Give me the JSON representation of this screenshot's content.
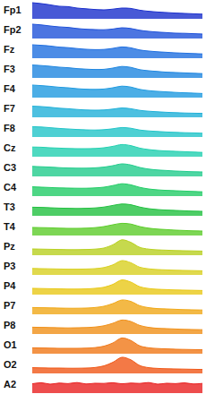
{
  "chart_data": [
    {
      "type": "area",
      "title": "Fp1",
      "color": "#1a2fcc",
      "ylim": [
        0,
        10
      ],
      "tick_labels": false,
      "grid": false,
      "categories": [
        null,
        null,
        null,
        null,
        null,
        null,
        null,
        null,
        null,
        null,
        null,
        null,
        null,
        null,
        null,
        null,
        null,
        null,
        null,
        null
      ],
      "values": [
        9,
        8.5,
        7.8,
        7,
        6.8,
        6,
        5.6,
        5.2,
        5,
        5.4,
        6,
        5.8,
        4.8,
        4.2,
        3.8,
        3.5,
        3.2,
        3,
        2.8,
        2.6
      ]
    },
    {
      "type": "area",
      "title": "Fp2",
      "color": "#1f52d9",
      "ylim": [
        0,
        10
      ],
      "tick_labels": false,
      "grid": false,
      "categories": [
        null,
        null,
        null,
        null,
        null,
        null,
        null,
        null,
        null,
        null,
        null,
        null,
        null,
        null,
        null,
        null,
        null,
        null,
        null,
        null
      ],
      "values": [
        8,
        7.6,
        7,
        6.5,
        6.2,
        5.6,
        5.2,
        5,
        4.9,
        5.3,
        6,
        5.6,
        4.6,
        4,
        3.6,
        3.3,
        3,
        2.9,
        2.7,
        2.5
      ]
    },
    {
      "type": "area",
      "title": "Fz",
      "color": "#1f6fe0",
      "ylim": [
        0,
        10
      ],
      "tick_labels": false,
      "grid": false,
      "categories": [
        null,
        null,
        null,
        null,
        null,
        null,
        null,
        null,
        null,
        null,
        null,
        null,
        null,
        null,
        null,
        null,
        null,
        null,
        null,
        null
      ],
      "values": [
        7.5,
        7.2,
        6.8,
        6.2,
        5.9,
        5.4,
        5,
        4.8,
        4.9,
        5.5,
        6.3,
        5.8,
        4.6,
        4,
        3.6,
        3.3,
        3,
        2.8,
        2.6,
        2.4
      ]
    },
    {
      "type": "area",
      "title": "F3",
      "color": "#1f86e0",
      "ylim": [
        0,
        10
      ],
      "tick_labels": false,
      "grid": false,
      "categories": [
        null,
        null,
        null,
        null,
        null,
        null,
        null,
        null,
        null,
        null,
        null,
        null,
        null,
        null,
        null,
        null,
        null,
        null,
        null,
        null
      ],
      "values": [
        7.2,
        6.9,
        6.5,
        6,
        5.7,
        5.2,
        4.9,
        4.7,
        4.8,
        5.5,
        6.4,
        5.9,
        4.6,
        4,
        3.6,
        3.2,
        3,
        2.8,
        2.6,
        2.4
      ]
    },
    {
      "type": "area",
      "title": "F4",
      "color": "#1f9ae0",
      "ylim": [
        0,
        10
      ],
      "tick_labels": false,
      "grid": false,
      "categories": [
        null,
        null,
        null,
        null,
        null,
        null,
        null,
        null,
        null,
        null,
        null,
        null,
        null,
        null,
        null,
        null,
        null,
        null,
        null,
        null
      ],
      "values": [
        7,
        6.7,
        6.3,
        5.8,
        5.5,
        5,
        4.7,
        4.6,
        4.8,
        5.5,
        6.4,
        5.9,
        4.6,
        3.9,
        3.5,
        3.2,
        2.9,
        2.7,
        2.5,
        2.3
      ]
    },
    {
      "type": "area",
      "title": "F7",
      "color": "#20b0d8",
      "ylim": [
        0,
        10
      ],
      "tick_labels": false,
      "grid": false,
      "categories": [
        null,
        null,
        null,
        null,
        null,
        null,
        null,
        null,
        null,
        null,
        null,
        null,
        null,
        null,
        null,
        null,
        null,
        null,
        null,
        null
      ],
      "values": [
        6.2,
        6,
        5.6,
        5.1,
        4.8,
        4.4,
        4.1,
        4,
        4.1,
        4.6,
        5.2,
        4.8,
        3.9,
        3.4,
        3.1,
        2.8,
        2.6,
        2.4,
        2.3,
        2.2
      ]
    },
    {
      "type": "area",
      "title": "F8",
      "color": "#22c4c8",
      "ylim": [
        0,
        10
      ],
      "tick_labels": false,
      "grid": false,
      "categories": [
        null,
        null,
        null,
        null,
        null,
        null,
        null,
        null,
        null,
        null,
        null,
        null,
        null,
        null,
        null,
        null,
        null,
        null,
        null,
        null
      ],
      "values": [
        5.8,
        5.6,
        5.2,
        4.8,
        4.5,
        4.2,
        4,
        3.9,
        4.1,
        4.6,
        5.3,
        4.9,
        3.9,
        3.4,
        3.1,
        2.8,
        2.6,
        2.4,
        2.3,
        2.1
      ]
    },
    {
      "type": "area",
      "title": "Cz",
      "color": "#22d0b0",
      "ylim": [
        0,
        10
      ],
      "tick_labels": false,
      "grid": false,
      "categories": [
        null,
        null,
        null,
        null,
        null,
        null,
        null,
        null,
        null,
        null,
        null,
        null,
        null,
        null,
        null,
        null,
        null,
        null,
        null,
        null
      ],
      "values": [
        5.4,
        5.3,
        5,
        4.8,
        4.6,
        4.5,
        4.5,
        4.6,
        5,
        5.8,
        6.8,
        6.2,
        4.8,
        4,
        3.5,
        3.2,
        3,
        2.8,
        2.6,
        2.4
      ]
    },
    {
      "type": "area",
      "title": "C3",
      "color": "#22cc8c",
      "ylim": [
        0,
        10
      ],
      "tick_labels": false,
      "grid": false,
      "categories": [
        null,
        null,
        null,
        null,
        null,
        null,
        null,
        null,
        null,
        null,
        null,
        null,
        null,
        null,
        null,
        null,
        null,
        null,
        null,
        null
      ],
      "values": [
        5.6,
        5.4,
        5.2,
        4.9,
        4.7,
        4.6,
        4.6,
        4.8,
        5.2,
        6,
        7,
        6.4,
        5,
        4.1,
        3.6,
        3.3,
        3,
        2.8,
        2.6,
        2.5
      ]
    },
    {
      "type": "area",
      "title": "C4",
      "color": "#22cc66",
      "ylim": [
        0,
        10
      ],
      "tick_labels": false,
      "grid": false,
      "categories": [
        null,
        null,
        null,
        null,
        null,
        null,
        null,
        null,
        null,
        null,
        null,
        null,
        null,
        null,
        null,
        null,
        null,
        null,
        null,
        null
      ],
      "values": [
        5.2,
        5,
        4.8,
        4.6,
        4.5,
        4.4,
        4.4,
        4.6,
        5,
        5.9,
        6.9,
        6.3,
        4.9,
        4,
        3.5,
        3.2,
        3,
        2.8,
        2.6,
        2.4
      ]
    },
    {
      "type": "area",
      "title": "T3",
      "color": "#22c040",
      "ylim": [
        0,
        10
      ],
      "tick_labels": false,
      "grid": false,
      "categories": [
        null,
        null,
        null,
        null,
        null,
        null,
        null,
        null,
        null,
        null,
        null,
        null,
        null,
        null,
        null,
        null,
        null,
        null,
        null,
        null
      ],
      "values": [
        4.8,
        4.7,
        4.5,
        4.3,
        4.2,
        4.1,
        4.2,
        4.4,
        4.9,
        5.8,
        6.6,
        6.2,
        4.9,
        4,
        3.5,
        3.2,
        3,
        2.8,
        2.6,
        2.5
      ]
    },
    {
      "type": "area",
      "title": "T4",
      "color": "#5ccc2a",
      "ylim": [
        0,
        10
      ],
      "tick_labels": false,
      "grid": false,
      "categories": [
        null,
        null,
        null,
        null,
        null,
        null,
        null,
        null,
        null,
        null,
        null,
        null,
        null,
        null,
        null,
        null,
        null,
        null,
        null,
        null
      ],
      "values": [
        4.5,
        4.4,
        4.3,
        4.1,
        4,
        4,
        4.1,
        4.4,
        5,
        6,
        6.8,
        6.4,
        5,
        4.1,
        3.6,
        3.3,
        3,
        2.8,
        2.6,
        2.5
      ]
    },
    {
      "type": "area",
      "title": "Pz",
      "color": "#b8d020",
      "ylim": [
        0,
        10
      ],
      "tick_labels": false,
      "grid": false,
      "categories": [
        null,
        null,
        null,
        null,
        null,
        null,
        null,
        null,
        null,
        null,
        null,
        null,
        null,
        null,
        null,
        null,
        null,
        null,
        null,
        null
      ],
      "values": [
        3.5,
        3.4,
        3.3,
        3.2,
        3.1,
        3.1,
        3.2,
        3.4,
        4,
        5.8,
        8.6,
        7.2,
        4.4,
        3.4,
        3,
        2.8,
        2.6,
        2.5,
        2.4,
        2.3
      ]
    },
    {
      "type": "area",
      "title": "P3",
      "color": "#d8d020",
      "ylim": [
        0,
        10
      ],
      "tick_labels": false,
      "grid": false,
      "categories": [
        null,
        null,
        null,
        null,
        null,
        null,
        null,
        null,
        null,
        null,
        null,
        null,
        null,
        null,
        null,
        null,
        null,
        null,
        null,
        null
      ],
      "values": [
        3.6,
        3.5,
        3.4,
        3.3,
        3.2,
        3.2,
        3.3,
        3.5,
        4.1,
        5.6,
        8,
        6.8,
        4.3,
        3.4,
        3,
        2.8,
        2.6,
        2.5,
        2.4,
        2.3
      ]
    },
    {
      "type": "area",
      "title": "P4",
      "color": "#e8c818",
      "ylim": [
        0,
        10
      ],
      "tick_labels": false,
      "grid": false,
      "categories": [
        null,
        null,
        null,
        null,
        null,
        null,
        null,
        null,
        null,
        null,
        null,
        null,
        null,
        null,
        null,
        null,
        null,
        null,
        null,
        null
      ],
      "values": [
        3.5,
        3.4,
        3.3,
        3.2,
        3.1,
        3.1,
        3.2,
        3.5,
        4.1,
        5.7,
        8.2,
        7,
        4.4,
        3.4,
        3,
        2.8,
        2.6,
        2.5,
        2.4,
        2.3
      ]
    },
    {
      "type": "area",
      "title": "P7",
      "color": "#f0a818",
      "ylim": [
        0,
        10
      ],
      "tick_labels": false,
      "grid": false,
      "categories": [
        null,
        null,
        null,
        null,
        null,
        null,
        null,
        null,
        null,
        null,
        null,
        null,
        null,
        null,
        null,
        null,
        null,
        null,
        null,
        null
      ],
      "values": [
        3.8,
        3.7,
        3.6,
        3.5,
        3.4,
        3.4,
        3.5,
        3.8,
        4.5,
        6,
        8,
        7.2,
        4.8,
        3.7,
        3.2,
        3,
        2.8,
        2.6,
        2.5,
        2.4
      ]
    },
    {
      "type": "area",
      "title": "P8",
      "color": "#f09018",
      "ylim": [
        0,
        10
      ],
      "tick_labels": false,
      "grid": false,
      "categories": [
        null,
        null,
        null,
        null,
        null,
        null,
        null,
        null,
        null,
        null,
        null,
        null,
        null,
        null,
        null,
        null,
        null,
        null,
        null,
        null
      ],
      "values": [
        3.8,
        3.7,
        3.6,
        3.5,
        3.4,
        3.5,
        3.6,
        3.9,
        4.6,
        6,
        7.8,
        7,
        4.8,
        3.7,
        3.2,
        3,
        2.8,
        2.6,
        2.5,
        2.4
      ]
    },
    {
      "type": "area",
      "title": "O1",
      "color": "#f07818",
      "ylim": [
        0,
        10
      ],
      "tick_labels": false,
      "grid": false,
      "categories": [
        null,
        null,
        null,
        null,
        null,
        null,
        null,
        null,
        null,
        null,
        null,
        null,
        null,
        null,
        null,
        null,
        null,
        null,
        null,
        null
      ],
      "values": [
        3.3,
        3.2,
        3.1,
        3,
        3,
        3,
        3.1,
        3.4,
        4.2,
        6,
        8.8,
        7.4,
        4.4,
        3.3,
        2.9,
        2.7,
        2.5,
        2.4,
        2.3,
        2.2
      ]
    },
    {
      "type": "area",
      "title": "O2",
      "color": "#f05818",
      "ylim": [
        0,
        10
      ],
      "tick_labels": false,
      "grid": false,
      "categories": [
        null,
        null,
        null,
        null,
        null,
        null,
        null,
        null,
        null,
        null,
        null,
        null,
        null,
        null,
        null,
        null,
        null,
        null,
        null,
        null
      ],
      "values": [
        3.2,
        3.1,
        3,
        3,
        2.9,
        2.9,
        3,
        3.3,
        4.2,
        6.2,
        9,
        7.6,
        4.4,
        3.2,
        2.8,
        2.6,
        2.5,
        2.4,
        2.3,
        2.2
      ]
    },
    {
      "type": "area",
      "title": "A2",
      "color": "#e82020",
      "ylim": [
        0,
        10
      ],
      "tick_labels": false,
      "grid": false,
      "categories": [
        null,
        null,
        null,
        null,
        null,
        null,
        null,
        null,
        null,
        null,
        null,
        null,
        null,
        null,
        null,
        null,
        null,
        null,
        null,
        null
      ],
      "values": [
        5.2,
        5.8,
        5,
        5.6,
        5.3,
        5.9,
        5.1,
        5.5,
        5.4,
        5.8,
        5.2,
        5.6,
        5.4,
        5.9,
        5,
        5.5,
        5.3,
        5.7,
        5.1,
        5.4
      ]
    }
  ]
}
